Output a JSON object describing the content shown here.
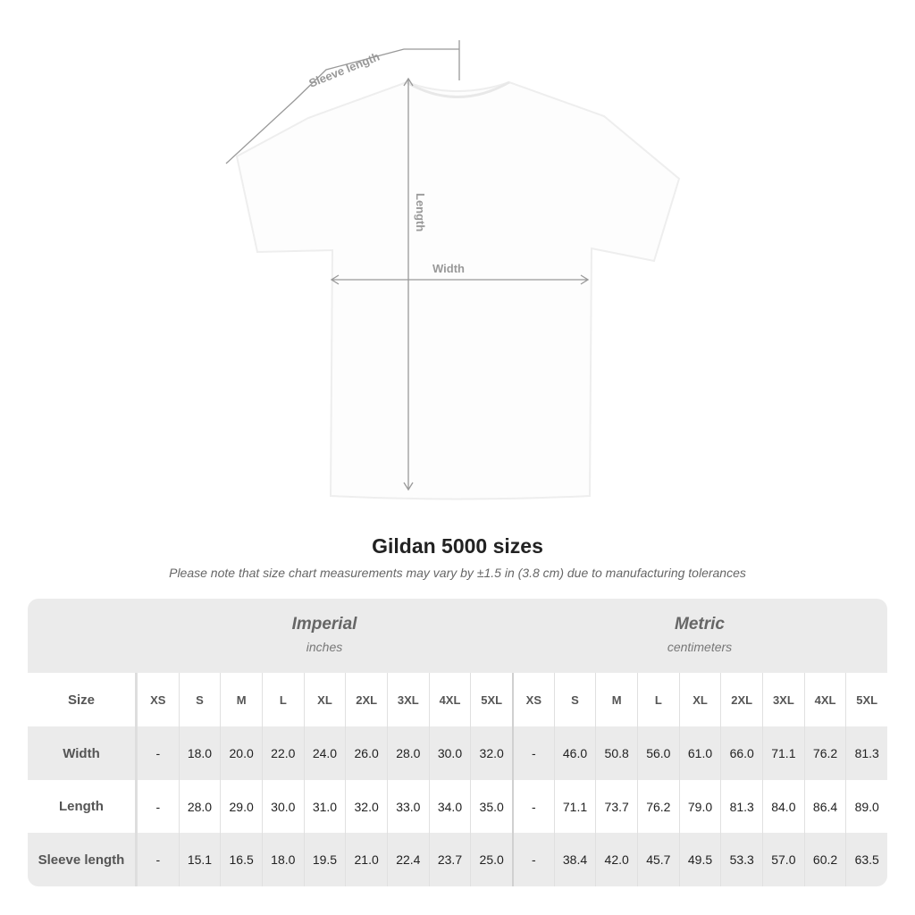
{
  "diagram_labels": {
    "sleeve": "Sleeve length",
    "length": "Length",
    "width": "Width"
  },
  "title": "Gildan 5000 sizes",
  "note": "Please note that size chart measurements may vary by ±1.5 in (3.8 cm) due to manufacturing tolerances",
  "imperial": {
    "name": "Imperial",
    "unit": "inches"
  },
  "metric": {
    "name": "Metric",
    "unit": "centimeters"
  },
  "size_label": "Size",
  "sizes": [
    "XS",
    "S",
    "M",
    "L",
    "XL",
    "2XL",
    "3XL",
    "4XL",
    "5XL"
  ],
  "rows": [
    {
      "label": "Width",
      "imperial": [
        "-",
        "18.0",
        "20.0",
        "22.0",
        "24.0",
        "26.0",
        "28.0",
        "30.0",
        "32.0"
      ],
      "metric": [
        "-",
        "46.0",
        "50.8",
        "56.0",
        "61.0",
        "66.0",
        "71.1",
        "76.2",
        "81.3"
      ]
    },
    {
      "label": "Length",
      "imperial": [
        "-",
        "28.0",
        "29.0",
        "30.0",
        "31.0",
        "32.0",
        "33.0",
        "34.0",
        "35.0"
      ],
      "metric": [
        "-",
        "71.1",
        "73.7",
        "76.2",
        "79.0",
        "81.3",
        "84.0",
        "86.4",
        "89.0"
      ]
    },
    {
      "label": "Sleeve length",
      "imperial": [
        "-",
        "15.1",
        "16.5",
        "18.0",
        "19.5",
        "21.0",
        "22.4",
        "23.7",
        "25.0"
      ],
      "metric": [
        "-",
        "38.4",
        "42.0",
        "45.7",
        "49.5",
        "53.3",
        "57.0",
        "60.2",
        "63.5"
      ]
    }
  ],
  "colors": {
    "header_bg": "#ebebeb",
    "line": "#999999"
  }
}
